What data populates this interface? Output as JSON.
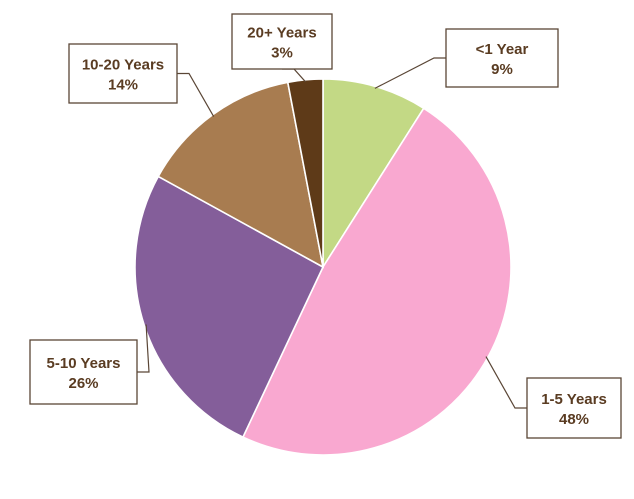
{
  "chart_data": {
    "type": "pie",
    "title": "",
    "start_angle_deg": 0,
    "direction": "clockwise",
    "legend": "none",
    "slices": [
      {
        "label": "<1 Year",
        "value": 9,
        "value_label": "9%",
        "color": "#c3d985"
      },
      {
        "label": "1-5 Years",
        "value": 48,
        "value_label": "48%",
        "color": "#f9a8d0"
      },
      {
        "label": "5-10 Years",
        "value": 26,
        "value_label": "26%",
        "color": "#845e9a"
      },
      {
        "label": "10-20 Years",
        "value": 14,
        "value_label": "14%",
        "color": "#a87c50"
      },
      {
        "label": "20+ Years",
        "value": 3,
        "value_label": "3%",
        "color": "#5e3a18"
      }
    ]
  }
}
